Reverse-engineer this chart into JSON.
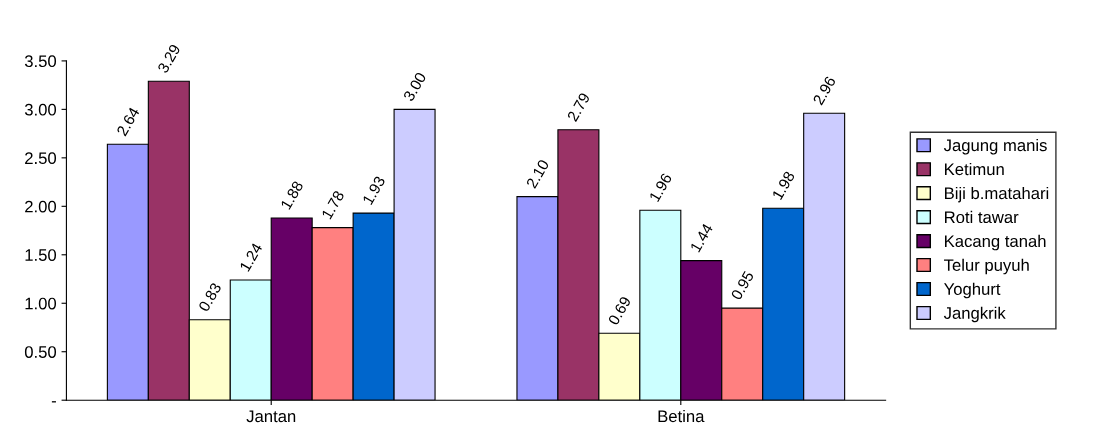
{
  "chart_data": {
    "type": "bar",
    "categories": [
      "Jantan",
      "Betina"
    ],
    "series": [
      {
        "name": "Jagung manis",
        "color": "#9999ff",
        "values": [
          2.64,
          2.1
        ],
        "value_labels": [
          "2.64",
          "2.10"
        ]
      },
      {
        "name": "Ketimun",
        "color": "#993366",
        "values": [
          3.29,
          2.79
        ],
        "value_labels": [
          "3.29",
          "2.79"
        ]
      },
      {
        "name": "Biji b.matahari",
        "color": "#ffffcc",
        "values": [
          0.83,
          0.69
        ],
        "value_labels": [
          "0.83",
          "0.69"
        ]
      },
      {
        "name": "Roti tawar",
        "color": "#ccffff",
        "values": [
          1.24,
          1.96
        ],
        "value_labels": [
          "1.24",
          "1.96"
        ]
      },
      {
        "name": "Kacang tanah",
        "color": "#660066",
        "values": [
          1.88,
          1.44
        ],
        "value_labels": [
          "1.88",
          "1.44"
        ]
      },
      {
        "name": "Telur puyuh",
        "color": "#ff8080",
        "values": [
          1.78,
          0.95
        ],
        "value_labels": [
          "1.78",
          "0.95"
        ]
      },
      {
        "name": "Yoghurt",
        "color": "#0066cc",
        "values": [
          1.93,
          1.98
        ],
        "value_labels": [
          "1.93",
          "1.98"
        ]
      },
      {
        "name": "Jangkrik",
        "color": "#ccccff",
        "values": [
          3.0,
          2.96
        ],
        "value_labels": [
          "3.00",
          "2.96"
        ]
      }
    ],
    "ylim": [
      0,
      3.5
    ],
    "yticks": [
      {
        "value": 0,
        "label": "-"
      },
      {
        "value": 0.5,
        "label": "0.50"
      },
      {
        "value": 1.0,
        "label": "1.00"
      },
      {
        "value": 1.5,
        "label": "1.50"
      },
      {
        "value": 2.0,
        "label": "2.00"
      },
      {
        "value": 2.5,
        "label": "2.50"
      },
      {
        "value": 3.0,
        "label": "3.00"
      },
      {
        "value": 3.5,
        "label": "3.50"
      }
    ],
    "grid": false,
    "legend": "right"
  }
}
